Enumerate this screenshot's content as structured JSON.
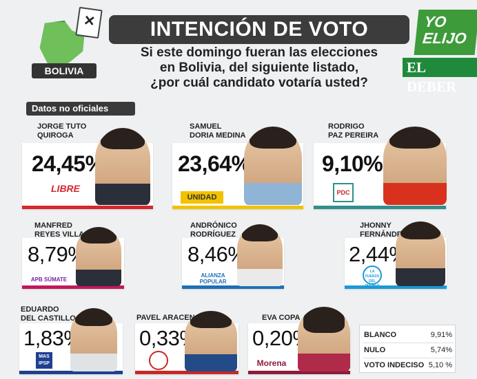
{
  "header": {
    "region": "BOLIVIA",
    "title": "INTENCIÓN DE VOTO",
    "question_lines": [
      "Si este domingo fueran las elecciones",
      "en Bolivia, del siguiente listado,",
      "¿por cuál candidato votaría usted?"
    ],
    "brand_yo": "YO",
    "brand_elijo": "ELIJO",
    "brand_deber": "EL DEBER",
    "badge": "Datos no oficiales"
  },
  "candidates": [
    {
      "name_line1": "JORGE TUTO",
      "name_line2": "QUIROGA",
      "percent": "24,45%",
      "party": "LIBRE",
      "color": "#d6262e"
    },
    {
      "name_line1": "SAMUEL",
      "name_line2": "DORIA MEDINA",
      "percent": "23,64%",
      "party": "UNIDAD",
      "color": "#f2c200"
    },
    {
      "name_line1": "RODRIGO",
      "name_line2": "PAZ PEREIRA",
      "percent": "9,10%",
      "party": "PDC",
      "color": "#2f8f8a"
    },
    {
      "name_line1": "MANFRED",
      "name_line2": "REYES VILLA",
      "percent": "8,79%",
      "party": "APB SÚMATE",
      "color": "#c2185b"
    },
    {
      "name_line1": "ANDRÓNICO",
      "name_line2": "RODRÍGUEZ",
      "percent": "8,46%",
      "party": "ALIANZA POPULAR",
      "color": "#1e6fb8"
    },
    {
      "name_line1": "JHONNY",
      "name_line2": "FERNÁNDEZ",
      "percent": "2,44%",
      "party": "LA FUERZA DEL PUEBLO",
      "color": "#1a9ad6"
    },
    {
      "name_line1": "EDUARDO",
      "name_line2": "DEL CASTILLO",
      "percent": "1,83%",
      "party": "MAS IPSP",
      "color": "#1f3f8f"
    },
    {
      "name_line1": "PAVEL ARACENA",
      "name_line2": "",
      "percent": "0,33%",
      "party": "",
      "color": "#c62828"
    },
    {
      "name_line1": "EVA COPA",
      "name_line2": "",
      "percent": "0,20%",
      "party": "Morena",
      "color": "#8e1b3a"
    }
  ],
  "others": [
    {
      "label": "BLANCO",
      "value": "9,91%"
    },
    {
      "label": "NULO",
      "value": "5,74%"
    },
    {
      "label": "VOTO INDECISO",
      "value": "5,10 %"
    }
  ]
}
